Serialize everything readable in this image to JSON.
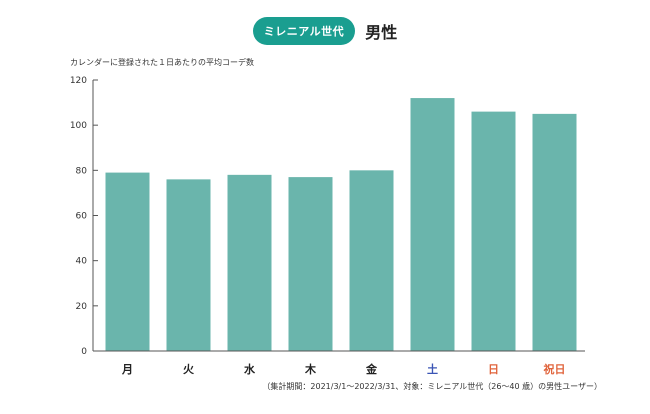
{
  "header": {
    "badge": "ミレニアル世代",
    "title": "男性"
  },
  "colors": {
    "bar": "#6ab5ac",
    "badge": "#1a9e90",
    "axis": "#555555",
    "weekday": "#222222",
    "saturday": "#3b55b5",
    "sunday": "#e0643c",
    "holiday": "#e0643c"
  },
  "chart_data": {
    "type": "bar",
    "title": "",
    "ylabel": "カレンダーに登録された１日あたりの平均コーデ数",
    "xlabel": "",
    "categories": [
      "月",
      "火",
      "水",
      "木",
      "金",
      "土",
      "日",
      "祝日"
    ],
    "category_colors": [
      "#222222",
      "#222222",
      "#222222",
      "#222222",
      "#222222",
      "#3b55b5",
      "#e0643c",
      "#e0643c"
    ],
    "values": [
      79,
      76,
      78,
      77,
      80,
      112,
      106,
      105
    ],
    "ylim": [
      0,
      120
    ],
    "yticks": [
      0,
      20,
      40,
      60,
      80,
      100,
      120
    ],
    "grid": false,
    "legend": "none"
  },
  "footnote": "（集計期間：2021/3/1〜2022/3/31、対象：ミレニアル世代（26〜40 歳）の男性ユーザー）"
}
